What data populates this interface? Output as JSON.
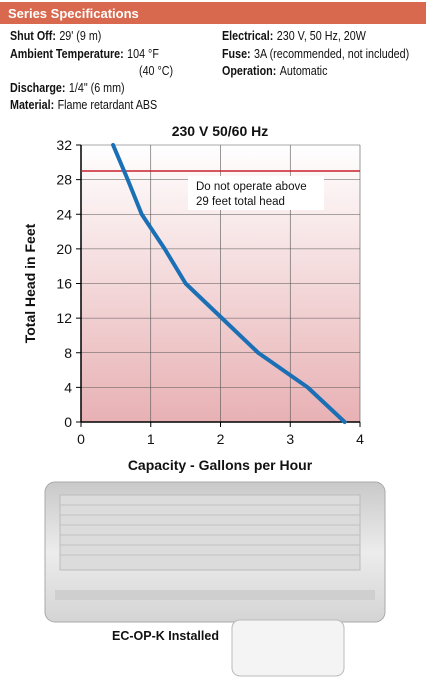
{
  "header": {
    "title": "Series Specifications"
  },
  "specs": {
    "left": [
      {
        "label": "Shut Off:",
        "value": "29' (9 m)"
      },
      {
        "label": "Ambient Temperature:",
        "value": "104 °F"
      },
      {
        "label": "",
        "value": "(40 °C)"
      },
      {
        "label": "Discharge:",
        "value": "1/4\" (6 mm)"
      },
      {
        "label": "Material:",
        "value": "Flame retardant ABS"
      }
    ],
    "right": [
      {
        "label": "Electrical:",
        "value": "230 V, 50 Hz, 20W"
      },
      {
        "label": "Fuse:",
        "value": "3A (recommended, not included)"
      },
      {
        "label": "Operation:",
        "value": "Automatic"
      }
    ]
  },
  "chart_data": {
    "type": "line",
    "title": "230 V  50/60 Hz",
    "x_label": "Capacity - Gallons per Hour",
    "y_label": "Total Head in Feet",
    "x": [
      0.46,
      0.67,
      0.87,
      1.2,
      1.5,
      2.02,
      2.54,
      3.25,
      3.78
    ],
    "series": [
      {
        "color": "#1a6fb5",
        "values": [
          32,
          28,
          24,
          20,
          16,
          12,
          8,
          4,
          0
        ]
      }
    ],
    "xlim": [
      0,
      4
    ],
    "xticks": [
      0,
      1,
      2,
      3,
      4
    ],
    "ylim": [
      0,
      32
    ],
    "yticks": [
      0,
      4,
      8,
      12,
      16,
      20,
      24,
      28,
      32
    ],
    "grid": true,
    "reference_line": {
      "value": 29,
      "color": "#c8202a"
    },
    "annotation": [
      "Do not operate above",
      "29 feet total head"
    ]
  },
  "photo": {
    "caption": "EC-OP-K Installed"
  }
}
